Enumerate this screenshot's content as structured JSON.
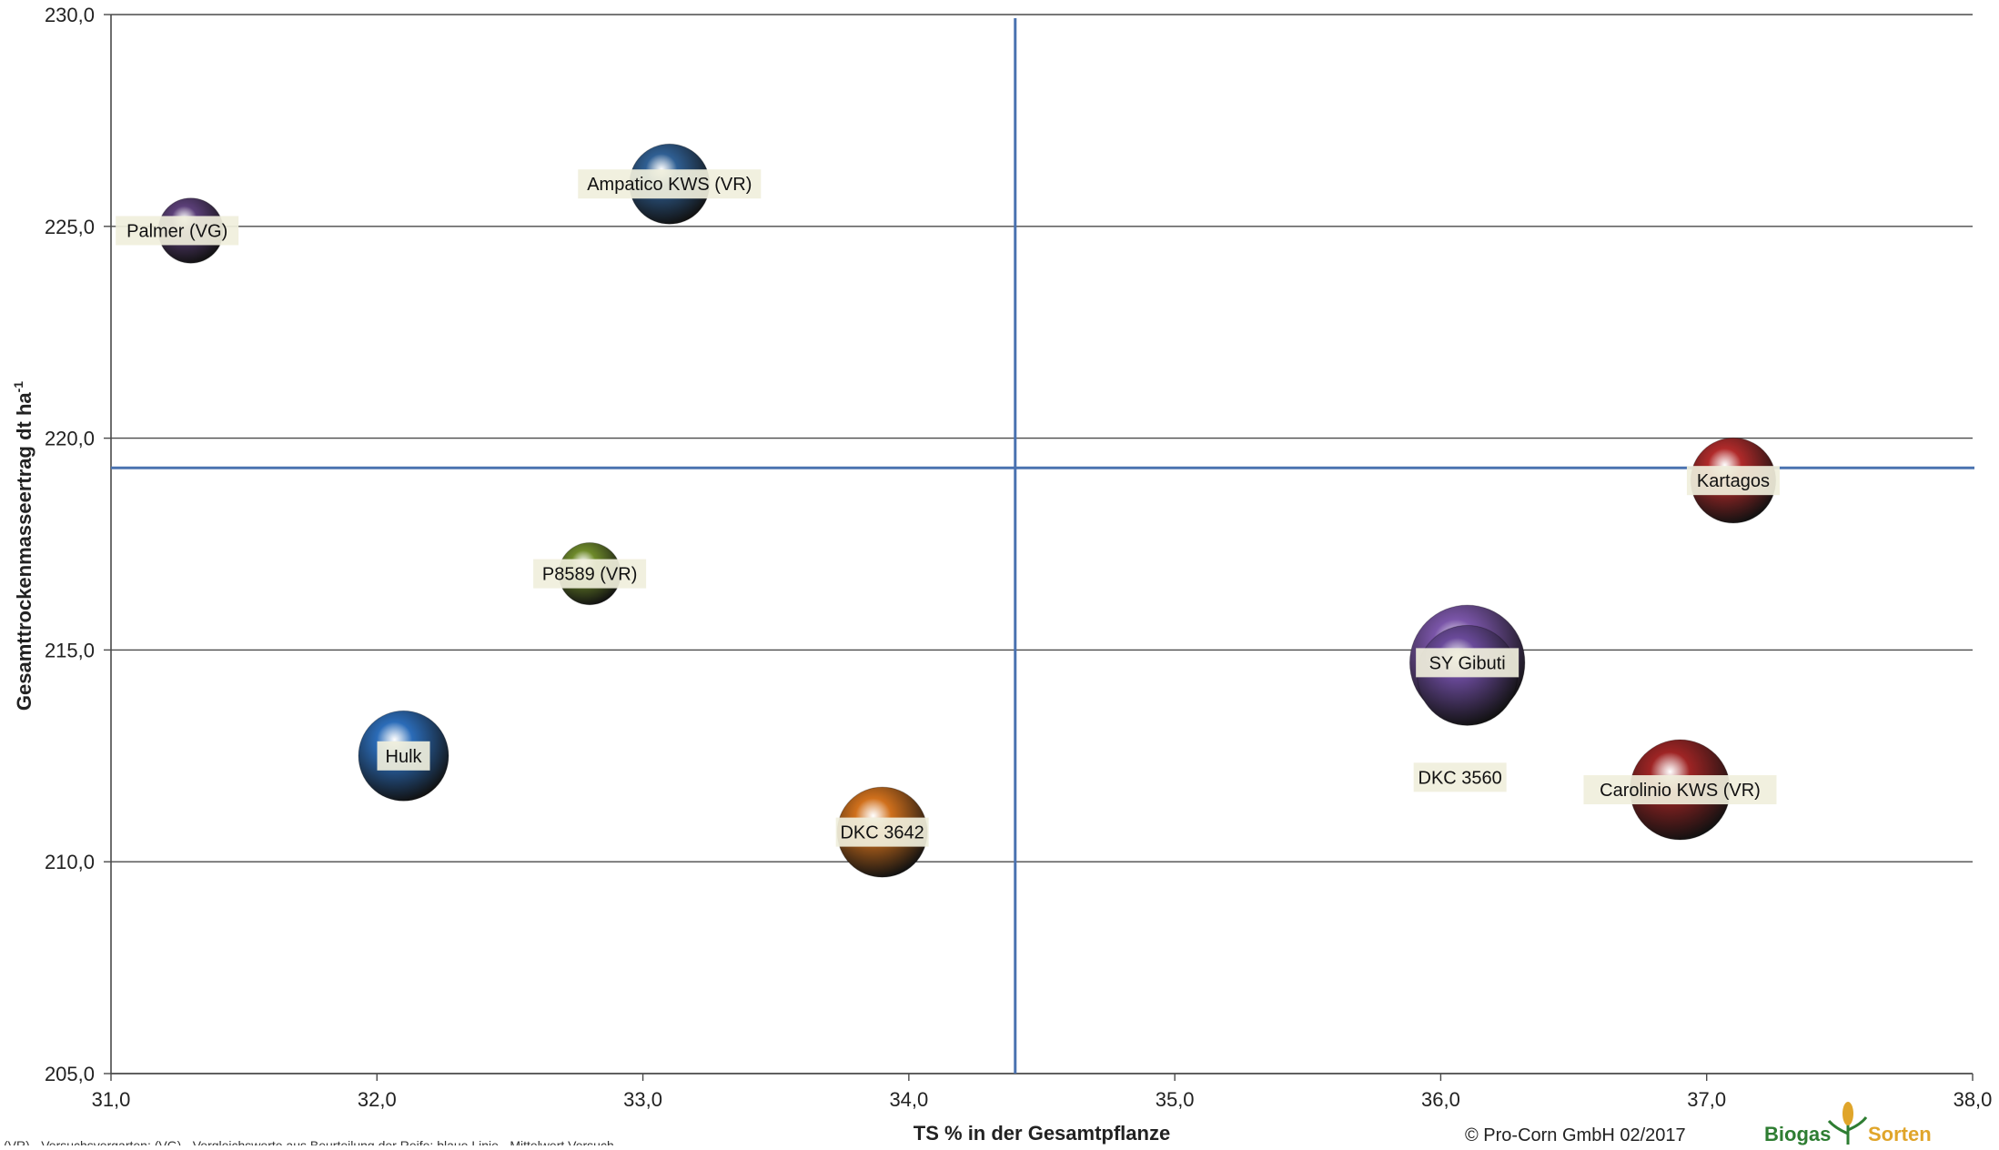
{
  "chart_data": {
    "type": "scatter",
    "xlabel": "TS % in der Gesamtpflanze",
    "ylabel": "Gesamttrockenmasseertrag dt ha",
    "ylabel_superscript": "-1",
    "xlim": [
      31.0,
      38.0
    ],
    "ylim": [
      205.0,
      230.0
    ],
    "x_ticks": [
      "31,0",
      "32,0",
      "33,0",
      "34,0",
      "35,0",
      "36,0",
      "37,0",
      "38,0"
    ],
    "y_ticks": [
      "205,0",
      "210,0",
      "215,0",
      "220,0",
      "225,0",
      "230,0"
    ],
    "grid": "horizontal",
    "reference_lines": {
      "x": 34.4,
      "y": 219.3,
      "color": "#4a72b0"
    },
    "points": [
      {
        "label": "Palmer (VG)",
        "x": 31.3,
        "y": 224.9,
        "size": 0.65,
        "color": "#5b3f78"
      },
      {
        "label": "Ampatico KWS (VR)",
        "x": 33.1,
        "y": 226.0,
        "size": 0.8,
        "color": "#2f5f93"
      },
      {
        "label": "Kartagos",
        "x": 37.1,
        "y": 219.0,
        "size": 0.85,
        "color": "#b02a2a"
      },
      {
        "label": "P8589 (VR)",
        "x": 32.8,
        "y": 216.8,
        "size": 0.62,
        "color": "#6e8a2a"
      },
      {
        "label": "SY Gibuti",
        "x": 36.1,
        "y": 214.7,
        "size": 1.15,
        "color": "#7a55a8"
      },
      {
        "label": "DKC 3560",
        "x": 36.1,
        "y": 214.4,
        "size": 1.0,
        "color": "#6a4a9a"
      },
      {
        "label": "Hulk",
        "x": 32.1,
        "y": 212.5,
        "size": 0.9,
        "color": "#2b6cb8"
      },
      {
        "label": "Carolinio KWS (VR)",
        "x": 36.9,
        "y": 211.7,
        "size": 1.0,
        "color": "#9e2424"
      },
      {
        "label": "DKC 3642",
        "x": 33.9,
        "y": 210.7,
        "size": 0.9,
        "color": "#d0701c"
      }
    ]
  },
  "footer": {
    "copyright": "© Pro-Corn GmbH 02/2017",
    "logo_word1": "Biogas",
    "logo_word2": "Sorten",
    "footnote": "(VR) - Versuchsvergarten; (VG) - Vergleichswerte aus Beurteilung der Reife; blaue Linie - Mittelwert Versuch"
  }
}
